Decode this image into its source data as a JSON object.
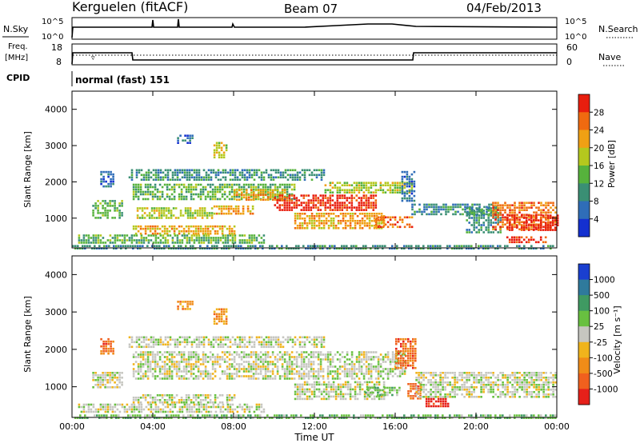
{
  "header": {
    "station": "Kerguelen (fitACF)",
    "beam": "Beam 07",
    "date": "04/Feb/2013"
  },
  "status_panels": {
    "nsky_label": "N.Sky",
    "nsearch_label": "N.Search",
    "freq_label_line1": "Freq.",
    "freq_label_line2": "[MHz]",
    "nave_label": "Nave",
    "cpid_label": "CPID",
    "cpid_text": "normal (fast) 151",
    "noise_ticks": [
      "10^5",
      "10^0"
    ],
    "freq_ticks": [
      "18",
      "8"
    ],
    "nave_ticks": [
      "60",
      "0"
    ]
  },
  "chart_data": [
    {
      "type": "heatmap",
      "name": "power",
      "xlabel": "",
      "ylabel": "Slant Range [km]",
      "xlim": [
        0,
        24
      ],
      "ylim": [
        180,
        4500
      ],
      "x_ticks": [
        "00:00",
        "04:00",
        "08:00",
        "12:00",
        "16:00",
        "20:00",
        "00:00"
      ],
      "y_ticks": [
        1000,
        2000,
        3000,
        4000
      ],
      "colorbar": {
        "label": "Power [dB]",
        "ticks": [
          "4",
          "8",
          "12",
          "16",
          "20",
          "24",
          "28"
        ],
        "colors": [
          "#1430d0",
          "#2f6db8",
          "#3a8f74",
          "#56b23c",
          "#b4c81e",
          "#f0a014",
          "#f06a10",
          "#e81e0e"
        ]
      },
      "regions": [
        {
          "t": [
            0.0,
            24.0
          ],
          "r": [
            180,
            260
          ],
          "level": 2
        },
        {
          "t": [
            0.3,
            9.5
          ],
          "r": [
            300,
            550
          ],
          "level": 3
        },
        {
          "t": [
            1.0,
            2.5
          ],
          "r": [
            1000,
            1500
          ],
          "level": 3
        },
        {
          "t": [
            1.4,
            2.0
          ],
          "r": [
            1900,
            2300
          ],
          "level": 1
        },
        {
          "t": [
            2.8,
            12.5
          ],
          "r": [
            2050,
            2350
          ],
          "level": 2
        },
        {
          "t": [
            3.0,
            8.0
          ],
          "r": [
            550,
            800
          ],
          "level": 5
        },
        {
          "t": [
            3.0,
            11.0
          ],
          "r": [
            1500,
            1950
          ],
          "level": 3
        },
        {
          "t": [
            3.2,
            7.0
          ],
          "r": [
            1000,
            1300
          ],
          "level": 4
        },
        {
          "t": [
            7.0,
            9.0
          ],
          "r": [
            1100,
            1350
          ],
          "level": 5
        },
        {
          "t": [
            8.0,
            10.5
          ],
          "r": [
            1500,
            1800
          ],
          "level": 5
        },
        {
          "t": [
            10.0,
            15.0
          ],
          "r": [
            1250,
            1650
          ],
          "level": 7
        },
        {
          "t": [
            11.0,
            15.5
          ],
          "r": [
            700,
            1150
          ],
          "level": 5
        },
        {
          "t": [
            12.5,
            16.8
          ],
          "r": [
            1700,
            2000
          ],
          "level": 4
        },
        {
          "t": [
            15.0,
            16.8
          ],
          "r": [
            750,
            1050
          ],
          "level": 6
        },
        {
          "t": [
            16.3,
            17.0
          ],
          "r": [
            1500,
            2300
          ],
          "level": 1
        },
        {
          "t": [
            16.8,
            21.0
          ],
          "r": [
            1100,
            1400
          ],
          "level": 2
        },
        {
          "t": [
            19.5,
            21.2
          ],
          "r": [
            600,
            1300
          ],
          "level": 2
        },
        {
          "t": [
            20.8,
            24.0
          ],
          "r": [
            700,
            1450
          ],
          "level": 6
        },
        {
          "t": [
            21.5,
            24.0
          ],
          "r": [
            650,
            1100
          ],
          "level": 7
        },
        {
          "t": [
            21.5,
            23.5
          ],
          "r": [
            350,
            500
          ],
          "level": 7
        },
        {
          "t": [
            7.0,
            7.6
          ],
          "r": [
            2700,
            3100
          ],
          "level": 4
        },
        {
          "t": [
            5.2,
            6.0
          ],
          "r": [
            3050,
            3300
          ],
          "level": 1
        }
      ]
    },
    {
      "type": "heatmap",
      "name": "velocity",
      "xlabel": "Time UT",
      "ylabel": "Slant Range [km]",
      "xlim": [
        0,
        24
      ],
      "ylim": [
        180,
        4500
      ],
      "x_ticks": [
        "00:00",
        "04:00",
        "08:00",
        "12:00",
        "16:00",
        "20:00",
        "00:00"
      ],
      "y_ticks": [
        1000,
        2000,
        3000,
        4000
      ],
      "colorbar": {
        "label": "Velocity [m s⁻¹]",
        "ticks": [
          "1000",
          "500",
          "100",
          "25",
          "-25",
          "-100",
          "-500",
          "-1000"
        ],
        "colors": [
          "#1a3fd0",
          "#2f7a9c",
          "#3f9a62",
          "#68c040",
          "#c6c6c0",
          "#f0b41c",
          "#f08c18",
          "#f0601e",
          "#e6201a"
        ]
      },
      "regions": [
        {
          "t": [
            0.0,
            24.0
          ],
          "r": [
            180,
            260
          ],
          "level": 3
        },
        {
          "t": [
            0.3,
            9.5
          ],
          "r": [
            300,
            550
          ],
          "level": 4
        },
        {
          "t": [
            1.0,
            2.5
          ],
          "r": [
            1000,
            1400
          ],
          "level": 4
        },
        {
          "t": [
            1.4,
            2.0
          ],
          "r": [
            1900,
            2300
          ],
          "level": 7
        },
        {
          "t": [
            2.8,
            12.5
          ],
          "r": [
            2050,
            2350
          ],
          "level": 4
        },
        {
          "t": [
            3.0,
            8.0
          ],
          "r": [
            550,
            800
          ],
          "level": 4
        },
        {
          "t": [
            3.0,
            16.5
          ],
          "r": [
            1200,
            1950
          ],
          "level": 4
        },
        {
          "t": [
            11.0,
            15.5
          ],
          "r": [
            700,
            1150
          ],
          "level": 4
        },
        {
          "t": [
            14.5,
            16.2
          ],
          "r": [
            750,
            1000
          ],
          "level": 3
        },
        {
          "t": [
            16.0,
            17.0
          ],
          "r": [
            1500,
            2300
          ],
          "level": 7
        },
        {
          "t": [
            16.6,
            17.3
          ],
          "r": [
            700,
            1100
          ],
          "level": 7
        },
        {
          "t": [
            17.5,
            18.6
          ],
          "r": [
            450,
            700
          ],
          "level": 8
        },
        {
          "t": [
            17.0,
            24.0
          ],
          "r": [
            700,
            1400
          ],
          "level": 4
        },
        {
          "t": [
            7.0,
            7.6
          ],
          "r": [
            2700,
            3100
          ],
          "level": 6
        },
        {
          "t": [
            5.2,
            6.0
          ],
          "r": [
            3050,
            3300
          ],
          "level": 6
        }
      ]
    }
  ]
}
